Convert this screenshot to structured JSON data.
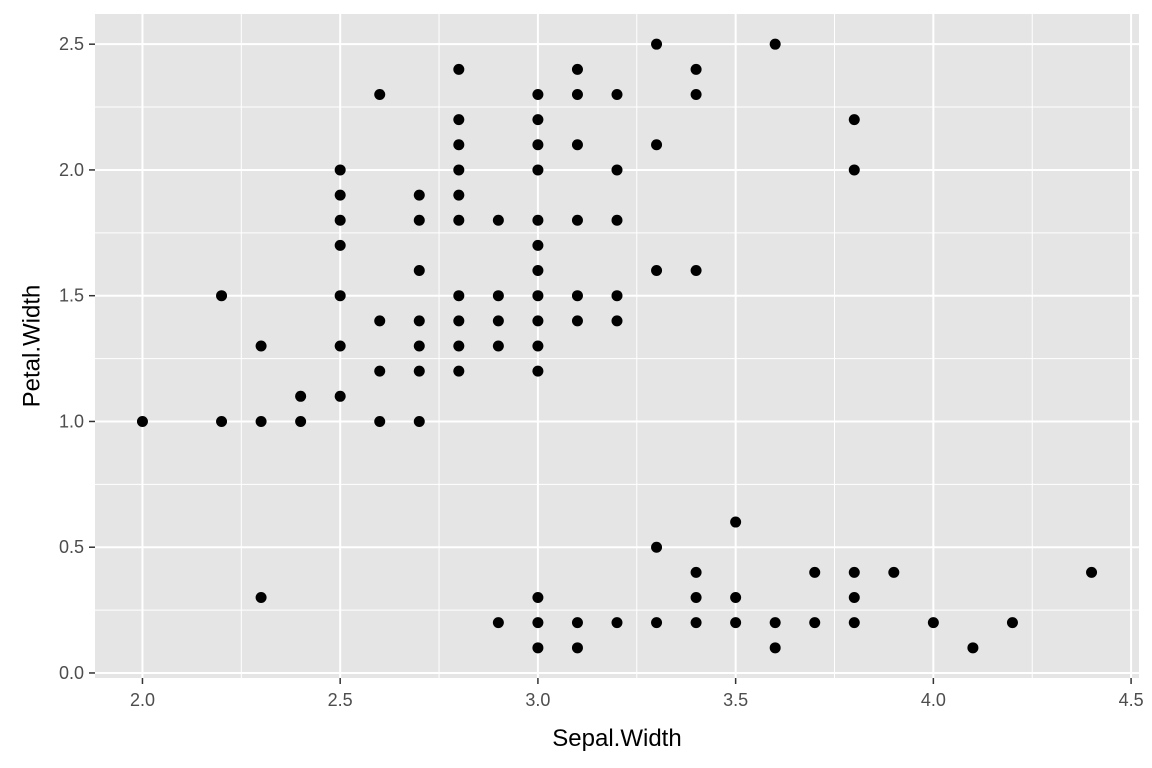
{
  "chart_data": {
    "type": "scatter",
    "xlabel": "Sepal.Width",
    "ylabel": "Petal.Width",
    "xlim": [
      1.88,
      4.52
    ],
    "ylim": [
      -0.02,
      2.62
    ],
    "x_ticks": [
      2.0,
      2.5,
      3.0,
      3.5,
      4.0,
      4.5
    ],
    "x_tick_labels": [
      "2.0",
      "2.5",
      "3.0",
      "3.5",
      "4.0",
      "4.5"
    ],
    "y_ticks": [
      0.0,
      0.5,
      1.0,
      1.5,
      2.0,
      2.5
    ],
    "y_tick_labels": [
      "0.0",
      "0.5",
      "1.0",
      "1.5",
      "2.0",
      "2.5"
    ],
    "grid": true,
    "colors": {
      "panel": "#e5e5e5",
      "grid": "#ffffff",
      "point": "#000000",
      "tick_text": "#4d4d4d"
    },
    "points": [
      [
        2.0,
        1.0
      ],
      [
        2.2,
        1.5
      ],
      [
        2.2,
        1.0
      ],
      [
        2.3,
        1.3
      ],
      [
        2.3,
        1.0
      ],
      [
        2.3,
        0.3
      ],
      [
        2.4,
        1.1
      ],
      [
        2.4,
        1.0
      ],
      [
        2.5,
        2.0
      ],
      [
        2.5,
        1.9
      ],
      [
        2.5,
        1.8
      ],
      [
        2.5,
        1.7
      ],
      [
        2.5,
        1.5
      ],
      [
        2.5,
        1.3
      ],
      [
        2.5,
        1.1
      ],
      [
        2.6,
        2.3
      ],
      [
        2.6,
        1.4
      ],
      [
        2.6,
        1.2
      ],
      [
        2.6,
        1.0
      ],
      [
        2.7,
        1.9
      ],
      [
        2.7,
        1.8
      ],
      [
        2.7,
        1.6
      ],
      [
        2.7,
        1.4
      ],
      [
        2.7,
        1.3
      ],
      [
        2.7,
        1.2
      ],
      [
        2.7,
        1.0
      ],
      [
        2.8,
        2.4
      ],
      [
        2.8,
        2.2
      ],
      [
        2.8,
        2.1
      ],
      [
        2.8,
        2.0
      ],
      [
        2.8,
        1.9
      ],
      [
        2.8,
        1.8
      ],
      [
        2.8,
        1.5
      ],
      [
        2.8,
        1.4
      ],
      [
        2.8,
        1.3
      ],
      [
        2.8,
        1.2
      ],
      [
        2.9,
        1.8
      ],
      [
        2.9,
        1.5
      ],
      [
        2.9,
        1.4
      ],
      [
        2.9,
        1.3
      ],
      [
        2.9,
        0.2
      ],
      [
        3.0,
        2.3
      ],
      [
        3.0,
        2.2
      ],
      [
        3.0,
        2.1
      ],
      [
        3.0,
        2.0
      ],
      [
        3.0,
        1.8
      ],
      [
        3.0,
        1.7
      ],
      [
        3.0,
        1.6
      ],
      [
        3.0,
        1.5
      ],
      [
        3.0,
        1.4
      ],
      [
        3.0,
        1.3
      ],
      [
        3.0,
        1.2
      ],
      [
        3.0,
        0.3
      ],
      [
        3.0,
        0.2
      ],
      [
        3.0,
        0.1
      ],
      [
        3.1,
        2.4
      ],
      [
        3.1,
        2.3
      ],
      [
        3.1,
        2.1
      ],
      [
        3.1,
        1.8
      ],
      [
        3.1,
        1.5
      ],
      [
        3.1,
        1.4
      ],
      [
        3.1,
        0.2
      ],
      [
        3.1,
        0.1
      ],
      [
        3.2,
        2.3
      ],
      [
        3.2,
        2.0
      ],
      [
        3.2,
        1.8
      ],
      [
        3.2,
        1.5
      ],
      [
        3.2,
        1.4
      ],
      [
        3.2,
        0.2
      ],
      [
        3.3,
        2.5
      ],
      [
        3.3,
        2.1
      ],
      [
        3.3,
        1.6
      ],
      [
        3.3,
        0.5
      ],
      [
        3.3,
        0.2
      ],
      [
        3.4,
        2.4
      ],
      [
        3.4,
        2.3
      ],
      [
        3.4,
        1.6
      ],
      [
        3.4,
        0.4
      ],
      [
        3.4,
        0.3
      ],
      [
        3.4,
        0.2
      ],
      [
        3.5,
        0.6
      ],
      [
        3.5,
        0.3
      ],
      [
        3.5,
        0.2
      ],
      [
        3.6,
        2.5
      ],
      [
        3.6,
        0.2
      ],
      [
        3.6,
        0.1
      ],
      [
        3.7,
        0.4
      ],
      [
        3.7,
        0.2
      ],
      [
        3.8,
        2.2
      ],
      [
        3.8,
        2.0
      ],
      [
        3.8,
        0.4
      ],
      [
        3.8,
        0.3
      ],
      [
        3.8,
        0.2
      ],
      [
        3.9,
        0.4
      ],
      [
        4.0,
        0.2
      ],
      [
        4.1,
        0.1
      ],
      [
        4.2,
        0.2
      ],
      [
        4.4,
        0.4
      ]
    ]
  }
}
